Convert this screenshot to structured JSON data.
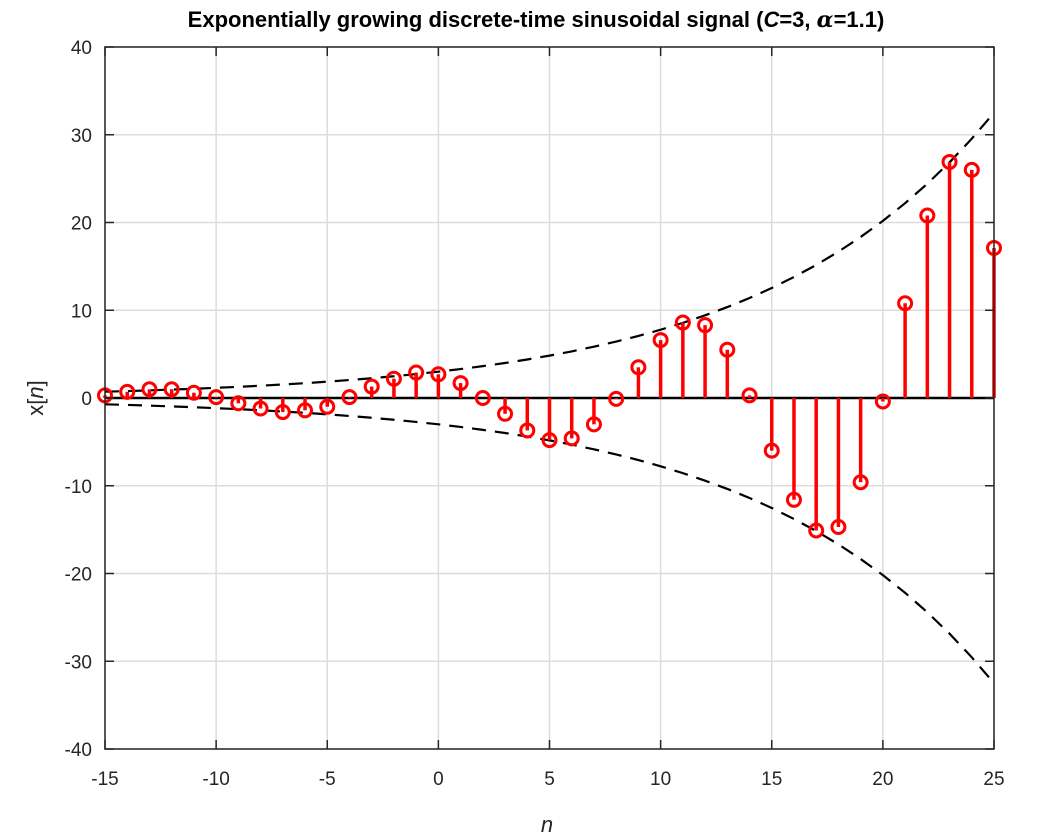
{
  "chart_data": {
    "type": "stem",
    "title": {
      "prefix": "Exponentially growing discrete-time sinusoidal signal (",
      "var_c": "C",
      "eq1": "=3, ",
      "var_alpha": "α",
      "eq2": "=1.1)"
    },
    "xlabel": "n",
    "ylabel": {
      "pre": "x[",
      "var": "n",
      "post": "]"
    },
    "xlim": [
      -15,
      25
    ],
    "ylim": [
      -40,
      40
    ],
    "xticks": [
      -15,
      -10,
      -5,
      0,
      5,
      10,
      15,
      20,
      25
    ],
    "xtick_labels": [
      "-15",
      "-10",
      "-5",
      "0",
      "5",
      "10",
      "15",
      "20",
      "25"
    ],
    "yticks": [
      -40,
      -30,
      -20,
      -10,
      0,
      10,
      20,
      30,
      40
    ],
    "ytick_labels": [
      "-40",
      "-30",
      "-20",
      "-10",
      "0",
      "10",
      "20",
      "30",
      "40"
    ],
    "grid": true,
    "series": [
      {
        "n": [
          -15,
          -14,
          -13,
          -12,
          -11,
          -10,
          -9,
          -8,
          -7,
          -6,
          -5,
          -4,
          -3,
          -2,
          -1,
          0,
          1,
          2,
          3,
          4,
          5,
          6,
          7,
          8,
          9,
          10,
          11,
          12,
          13,
          14,
          15,
          16,
          17,
          18,
          19,
          20,
          21,
          22,
          23,
          24,
          25
        ],
        "values": [
          0.3,
          0.7,
          1.0,
          1.0,
          0.6,
          0.1,
          -0.6,
          -1.2,
          -1.6,
          -1.4,
          -1.0,
          0.1,
          1.3,
          2.2,
          2.9,
          2.7,
          1.7,
          0.0,
          -1.8,
          -3.7,
          -4.8,
          -4.6,
          -3.0,
          -0.1,
          3.5,
          6.6,
          8.6,
          8.3,
          5.5,
          0.3,
          -6.0,
          -11.6,
          -15.1,
          -14.7,
          -9.6,
          -0.4,
          10.8,
          20.8,
          26.9,
          26.0,
          17.1
        ],
        "color": "#ff0000"
      }
    ],
    "envelope": {
      "upper": [
        0.72,
        0.79,
        0.87,
        0.96,
        1.05,
        1.16,
        1.27,
        1.4,
        1.54,
        1.69,
        1.86,
        2.05,
        2.25,
        2.48,
        2.73,
        3.0,
        3.3,
        3.63,
        3.99,
        4.39,
        4.83,
        5.31,
        5.85,
        6.43,
        7.07,
        7.78,
        8.56,
        9.42,
        10.36,
        11.39,
        12.53,
        13.79,
        15.16,
        16.68,
        18.35,
        20.18,
        22.2,
        24.42,
        26.86,
        29.55,
        32.5
      ],
      "lower": [
        -0.72,
        -0.79,
        -0.87,
        -0.96,
        -1.05,
        -1.16,
        -1.27,
        -1.4,
        -1.54,
        -1.69,
        -1.86,
        -2.05,
        -2.25,
        -2.48,
        -2.73,
        -3.0,
        -3.3,
        -3.63,
        -3.99,
        -4.39,
        -4.83,
        -5.31,
        -5.85,
        -6.43,
        -7.07,
        -7.78,
        -8.56,
        -9.42,
        -10.36,
        -11.39,
        -12.53,
        -13.79,
        -15.16,
        -16.68,
        -18.35,
        -20.18,
        -22.2,
        -24.42,
        -26.86,
        -29.55,
        -32.5
      ],
      "color": "#000000",
      "style": "dashed"
    }
  }
}
